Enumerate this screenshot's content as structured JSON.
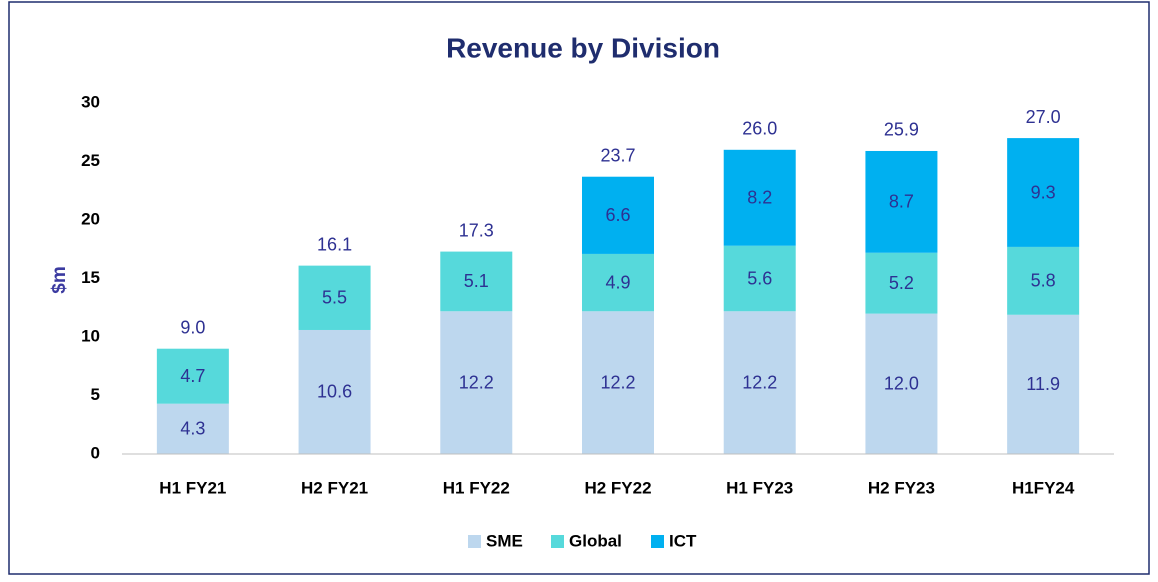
{
  "chart_data": {
    "type": "stacked_bar",
    "title": "Revenue by Division",
    "y_label": "$m",
    "categories": [
      "H1 FY21",
      "H2 FY21",
      "H1 FY22",
      "H2 FY22",
      "H1 FY23",
      "H2 FY23",
      "H1FY24"
    ],
    "series": [
      {
        "name": "SME",
        "color": "#bdd7ee",
        "values": [
          4.3,
          10.6,
          12.2,
          12.2,
          12.2,
          12.0,
          11.9
        ],
        "value_labels": [
          "4.3",
          "10.6",
          "12.2",
          "12.2",
          "12.2",
          "12.0",
          "11.9"
        ]
      },
      {
        "name": "Global",
        "color": "#56d9db",
        "values": [
          4.7,
          5.5,
          5.1,
          4.9,
          5.6,
          5.2,
          5.8
        ],
        "value_labels": [
          "4.7",
          "5.5",
          "5.1",
          "4.9",
          "5.6",
          "5.2",
          "5.8"
        ]
      },
      {
        "name": "ICT",
        "color": "#00b0f0",
        "values": [
          null,
          null,
          null,
          6.6,
          8.2,
          8.7,
          9.3
        ],
        "value_labels": [
          null,
          null,
          null,
          "6.6",
          "8.2",
          "8.7",
          "9.3"
        ]
      }
    ],
    "totals": [
      9.0,
      16.1,
      17.3,
      23.7,
      26.0,
      25.9,
      27.0
    ],
    "total_labels": [
      "9.0",
      "16.1",
      "17.3",
      "23.7",
      "26.0",
      "25.9",
      "27.0"
    ],
    "ylim": [
      0,
      30
    ],
    "yticks": [
      0,
      5,
      10,
      15,
      20,
      25,
      30
    ],
    "grid": false,
    "legend": "bottom"
  }
}
